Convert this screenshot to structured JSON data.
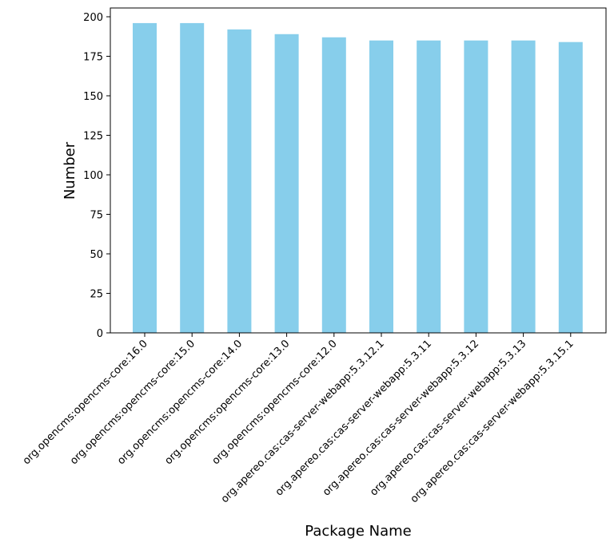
{
  "chart_data": {
    "type": "bar",
    "title": "",
    "xlabel": "Package Name",
    "ylabel": "Number",
    "ylim": [
      0,
      206
    ],
    "yticks": [
      0,
      25,
      50,
      75,
      100,
      125,
      150,
      175,
      200
    ],
    "grid": false,
    "legend": null,
    "bar_color": "#87CEEB",
    "categories": [
      "org.opencms:opencms-core:16.0",
      "org.opencms:opencms-core:15.0",
      "org.opencms:opencms-core:14.0",
      "org.opencms:opencms-core:13.0",
      "org.opencms:opencms-core:12.0",
      "org.apereo.cas:cas-server-webapp:5.3.12.1",
      "org.apereo.cas:cas-server-webapp:5.3.11",
      "org.apereo.cas:cas-server-webapp:5.3.12",
      "org.apereo.cas:cas-server-webapp:5.3.13",
      "org.apereo.cas:cas-server-webapp:5.3.15.1"
    ],
    "values": [
      196,
      196,
      192,
      189,
      187,
      185,
      185,
      185,
      185,
      184
    ]
  }
}
